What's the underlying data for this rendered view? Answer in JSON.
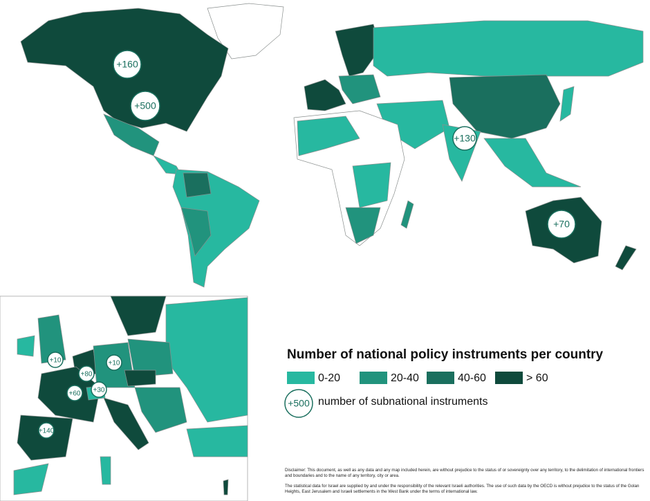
{
  "legend": {
    "title": "Number of national policy instruments per country",
    "items": [
      {
        "label": "0-20",
        "color": "#27b8a0"
      },
      {
        "label": "20-40",
        "color": "#21937d"
      },
      {
        "label": "40-60",
        "color": "#1a6f5e"
      },
      {
        "label": "> 60",
        "color": "#0f4a3c"
      }
    ],
    "bubble_example": "+500",
    "bubble_text": "number of subnational instruments"
  },
  "world_bubbles": [
    "+160",
    "+500",
    "+130",
    "+70"
  ],
  "inset_bubbles": [
    "+10",
    "+10",
    "+80",
    "+30",
    "+60",
    "+140"
  ],
  "disclaimer": [
    "Disclaimer: This document, as well as any data and any map included herein, are without prejudice to the status of or sovereignty over any territory, to the delimitation of international frontiers and boundaries and to the name of any territory, city or area.",
    "The statistical data for Israel are supplied by and under the responsibility of the relevant Israeli authorities. The use of such data by the OECD is without prejudice to the status of the Golan Heights, East Jerusalem and Israeli settlements in the West Bank under the terms of international law."
  ]
}
